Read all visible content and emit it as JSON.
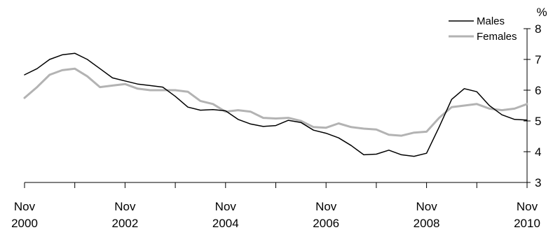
{
  "chart_data": {
    "type": "line",
    "title": "",
    "xlabel": "",
    "ylabel": "%",
    "ylim": [
      3,
      8
    ],
    "xlim": [
      "2000-11",
      "2010-11"
    ],
    "grid": false,
    "legend_position": "top-right",
    "y_ticks": [
      "3",
      "4",
      "5",
      "6",
      "7",
      "8"
    ],
    "x_ticks": [
      {
        "month": "Nov",
        "year": "2000",
        "date": "2000-11"
      },
      {
        "month": "Nov",
        "year": "2002",
        "date": "2002-11"
      },
      {
        "month": "Nov",
        "year": "2004",
        "date": "2004-11"
      },
      {
        "month": "Nov",
        "year": "2006",
        "date": "2006-11"
      },
      {
        "month": "Nov",
        "year": "2008",
        "date": "2008-11"
      },
      {
        "month": "Nov",
        "year": "2010",
        "date": "2010-11"
      }
    ],
    "series": [
      {
        "name": "Males",
        "color": "#000000",
        "points": [
          [
            "2000-11",
            6.5
          ],
          [
            "2001-02",
            6.7
          ],
          [
            "2001-05",
            7.0
          ],
          [
            "2001-08",
            7.15
          ],
          [
            "2001-11",
            7.2
          ],
          [
            "2002-02",
            7.0
          ],
          [
            "2002-05",
            6.7
          ],
          [
            "2002-08",
            6.4
          ],
          [
            "2002-11",
            6.3
          ],
          [
            "2003-02",
            6.2
          ],
          [
            "2003-05",
            6.15
          ],
          [
            "2003-08",
            6.1
          ],
          [
            "2003-11",
            5.8
          ],
          [
            "2004-02",
            5.45
          ],
          [
            "2004-05",
            5.35
          ],
          [
            "2004-08",
            5.37
          ],
          [
            "2004-11",
            5.33
          ],
          [
            "2005-02",
            5.05
          ],
          [
            "2005-05",
            4.9
          ],
          [
            "2005-08",
            4.82
          ],
          [
            "2005-11",
            4.85
          ],
          [
            "2006-02",
            5.02
          ],
          [
            "2006-05",
            4.95
          ],
          [
            "2006-08",
            4.7
          ],
          [
            "2006-11",
            4.6
          ],
          [
            "2007-02",
            4.45
          ],
          [
            "2007-05",
            4.2
          ],
          [
            "2007-08",
            3.9
          ],
          [
            "2007-11",
            3.92
          ],
          [
            "2008-02",
            4.05
          ],
          [
            "2008-05",
            3.9
          ],
          [
            "2008-08",
            3.85
          ],
          [
            "2008-11",
            3.95
          ],
          [
            "2009-02",
            4.8
          ],
          [
            "2009-05",
            5.7
          ],
          [
            "2009-08",
            6.05
          ],
          [
            "2009-11",
            5.95
          ],
          [
            "2010-02",
            5.5
          ],
          [
            "2010-05",
            5.2
          ],
          [
            "2010-08",
            5.05
          ],
          [
            "2010-11",
            5.03
          ]
        ]
      },
      {
        "name": "Females",
        "color": "#b3b3b3",
        "points": [
          [
            "2000-11",
            5.75
          ],
          [
            "2001-02",
            6.1
          ],
          [
            "2001-05",
            6.5
          ],
          [
            "2001-08",
            6.65
          ],
          [
            "2001-11",
            6.7
          ],
          [
            "2002-02",
            6.45
          ],
          [
            "2002-05",
            6.1
          ],
          [
            "2002-08",
            6.15
          ],
          [
            "2002-11",
            6.2
          ],
          [
            "2003-02",
            6.05
          ],
          [
            "2003-05",
            6.0
          ],
          [
            "2003-08",
            6.0
          ],
          [
            "2003-11",
            6.0
          ],
          [
            "2004-02",
            5.95
          ],
          [
            "2004-05",
            5.65
          ],
          [
            "2004-08",
            5.55
          ],
          [
            "2004-11",
            5.3
          ],
          [
            "2005-02",
            5.35
          ],
          [
            "2005-05",
            5.3
          ],
          [
            "2005-08",
            5.1
          ],
          [
            "2005-11",
            5.08
          ],
          [
            "2006-02",
            5.1
          ],
          [
            "2006-05",
            5.0
          ],
          [
            "2006-08",
            4.8
          ],
          [
            "2006-11",
            4.78
          ],
          [
            "2007-02",
            4.92
          ],
          [
            "2007-05",
            4.8
          ],
          [
            "2007-08",
            4.75
          ],
          [
            "2007-11",
            4.72
          ],
          [
            "2008-02",
            4.55
          ],
          [
            "2008-05",
            4.52
          ],
          [
            "2008-08",
            4.62
          ],
          [
            "2008-11",
            4.65
          ],
          [
            "2009-02",
            5.1
          ],
          [
            "2009-05",
            5.45
          ],
          [
            "2009-08",
            5.5
          ],
          [
            "2009-11",
            5.55
          ],
          [
            "2010-02",
            5.4
          ],
          [
            "2010-05",
            5.35
          ],
          [
            "2010-08",
            5.4
          ],
          [
            "2010-11",
            5.55
          ]
        ]
      }
    ]
  }
}
